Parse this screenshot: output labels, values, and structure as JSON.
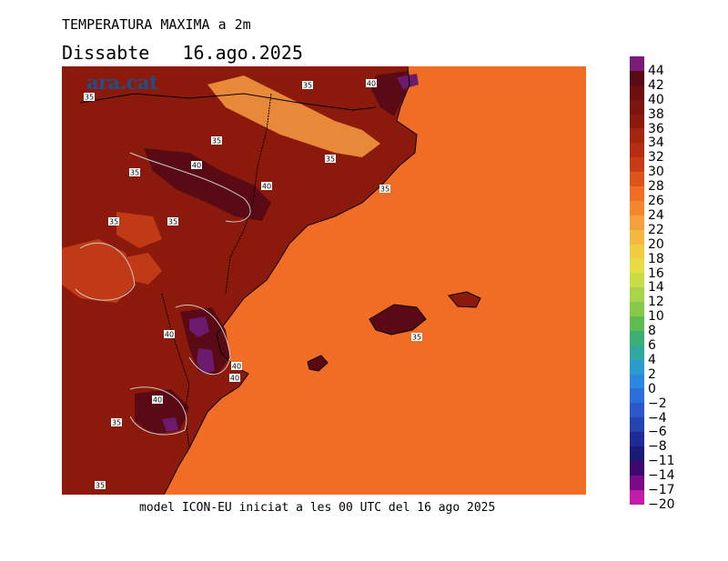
{
  "header": {
    "title": "TEMPERATURA MAXIMA a 2m",
    "day": "Dissabte",
    "date": "16.ago.2025"
  },
  "logo": {
    "text": "ara.cat",
    "color": "#1f4f86"
  },
  "footer": {
    "text": "model ICON-EU iniciat a les 00 UTC del 16 ago 2025"
  },
  "map": {
    "contour_labels": [
      "35",
      "35",
      "35",
      "35",
      "35",
      "35",
      "35",
      "35",
      "35",
      "35",
      "35",
      "40",
      "40",
      "40",
      "40",
      "40",
      "40",
      "40"
    ],
    "colors": {
      "sea": "#f26d24",
      "land_hot": "#8c1a0c",
      "land_very_hot": "#5a0a14",
      "land_mid": "#c13a16",
      "mountain": "#e8893a",
      "extreme": "#6b1a6e",
      "border": "#000000",
      "contour": "#c8c8c8"
    }
  },
  "legend": {
    "labels": [
      "44",
      "42",
      "40",
      "38",
      "36",
      "34",
      "32",
      "30",
      "28",
      "26",
      "24",
      "22",
      "20",
      "18",
      "16",
      "14",
      "12",
      "10",
      "8",
      "6",
      "4",
      "2",
      "0",
      "−2",
      "−4",
      "−6",
      "−8",
      "−11",
      "−14",
      "−17",
      "−20"
    ],
    "colors": [
      "#7a1a7a",
      "#5a0a14",
      "#6e0e0e",
      "#7e1410",
      "#8c1a0c",
      "#a3240f",
      "#b52e12",
      "#c73c14",
      "#db5418",
      "#f26d24",
      "#f4872e",
      "#f5a03a",
      "#f5b83e",
      "#f1cb40",
      "#e7dc44",
      "#c8dc44",
      "#a8d448",
      "#86c848",
      "#5cbc50",
      "#3cb070",
      "#30a8a0",
      "#2a9ad0",
      "#2a88e0",
      "#2a6ed8",
      "#2a58c8",
      "#2444b0",
      "#1e2a98",
      "#1a1a7a",
      "#3c0a6e",
      "#7a0a8a",
      "#c41aa8"
    ]
  }
}
